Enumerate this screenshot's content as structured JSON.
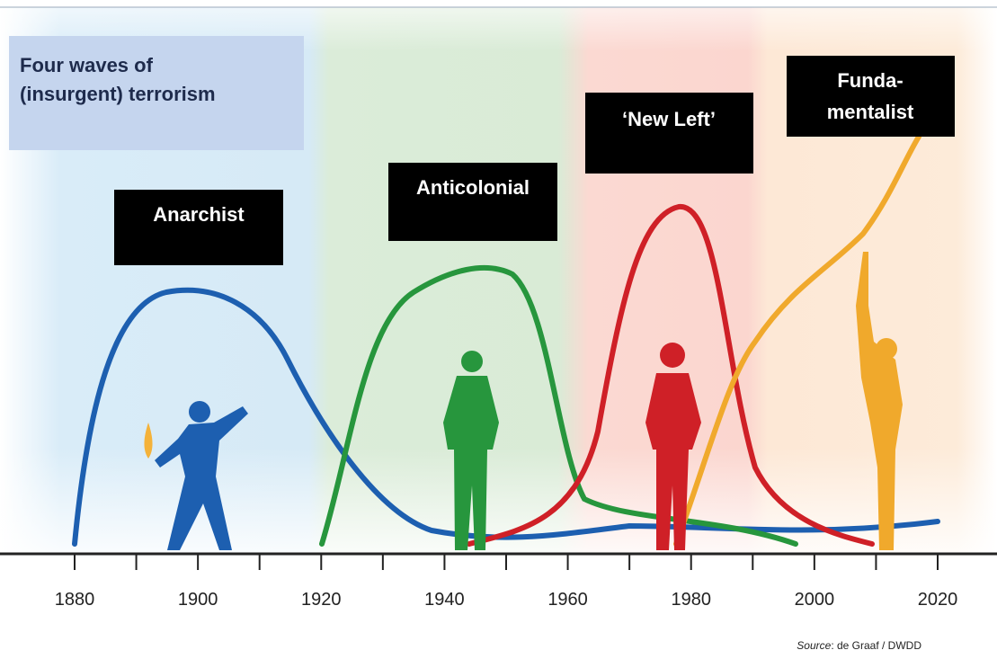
{
  "title": {
    "lines": [
      "Four waves of",
      "(insurgent) terrorism"
    ]
  },
  "waves": [
    {
      "label": [
        "Anarchist"
      ]
    },
    {
      "label": [
        "Anticolonial"
      ]
    },
    {
      "label": [
        "‘New Left’"
      ]
    },
    {
      "label": [
        "Funda-",
        "mentalist"
      ]
    }
  ],
  "axis": {
    "ticks": [
      "1880",
      "1900",
      "1920",
      "1940",
      "1960",
      "1980",
      "2000",
      "2020"
    ]
  },
  "source": {
    "label": "Source",
    "text": ": de Graaf / DWDD"
  }
}
